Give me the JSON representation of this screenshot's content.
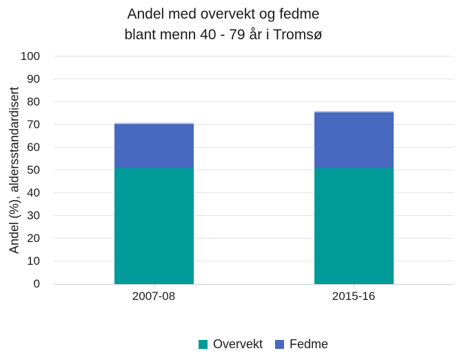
{
  "chart": {
    "title_line1": "Andel med overvekt og fedme",
    "title_line2": "blant menn 40 - 79 år i Tromsø"
  },
  "chart_data": {
    "type": "bar",
    "stacked": true,
    "title": "Andel med overvekt og fedme blant menn 40 - 79 år i Tromsø",
    "categories": [
      "2007-08",
      "2015-16"
    ],
    "series": [
      {
        "name": "Overvekt",
        "color": "#009a98",
        "values": [
          51,
          51
        ]
      },
      {
        "name": "Fedme",
        "color": "#4769bf",
        "values": [
          20,
          25
        ]
      }
    ],
    "stack_totals": [
      71,
      76
    ],
    "ylabel": "Andel (%), aldersstandardisert",
    "xlabel": "",
    "ylim": [
      0,
      100
    ],
    "ytick_step": 10,
    "grid": true,
    "legend_position": "bottom"
  },
  "colors": {
    "text": "#1a1a1a",
    "gridline": "#e2e2e2",
    "axis_line": "#d0d0d0",
    "bar_top_edge": "#b7c1e2",
    "background": "#ffffff"
  }
}
